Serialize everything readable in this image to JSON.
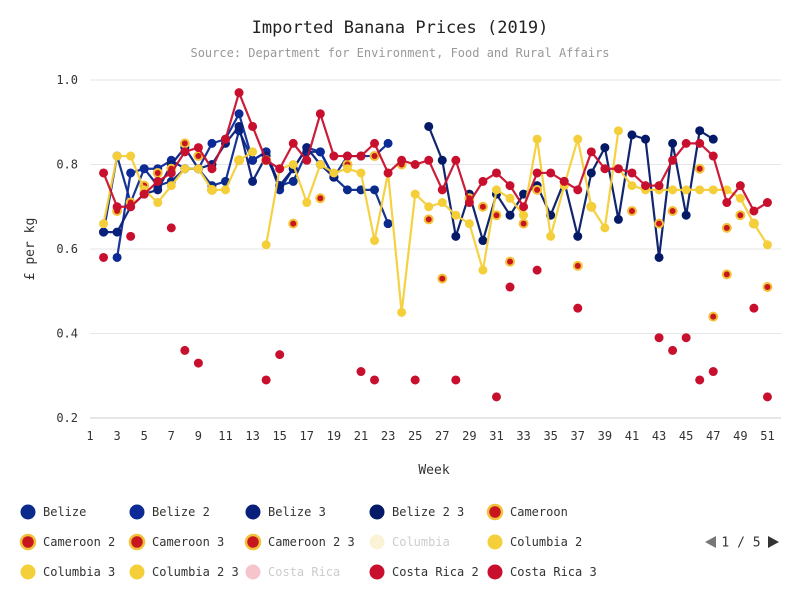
{
  "chart_data": {
    "type": "line",
    "title": "Imported Banana Prices (2019)",
    "subtitle": "Source: Department for Environment, Food and Rural Affairs",
    "xlabel": "Week",
    "ylabel": "£ per kg",
    "xlim": [
      1,
      52
    ],
    "ylim": [
      0.2,
      1.0
    ],
    "x_ticks": [
      1,
      3,
      5,
      7,
      9,
      11,
      13,
      15,
      17,
      19,
      21,
      23,
      25,
      27,
      29,
      31,
      33,
      35,
      37,
      39,
      41,
      43,
      45,
      47,
      49,
      51
    ],
    "y_ticks": [
      0.2,
      0.4,
      0.6,
      0.8,
      1.0
    ],
    "y_tick_labels": [
      "0.2",
      "0.4",
      "0.6",
      "0.8",
      "1.0"
    ],
    "grid": "horizontal",
    "legend_position": "bottom",
    "pager": "1 / 5",
    "series": [
      {
        "name": "Belize",
        "color": "#0a2a8c",
        "border": "#0a2a8c",
        "hidden": false,
        "style": "line",
        "x": [
          2,
          3,
          4,
          5,
          6,
          7,
          8,
          9,
          10,
          11,
          12,
          13,
          14,
          15,
          16,
          17,
          18,
          19,
          20,
          21,
          22,
          23
        ],
        "y": [
          0.64,
          0.82,
          0.71,
          0.79,
          0.75,
          0.76,
          0.79,
          0.79,
          0.75,
          0.76,
          0.88,
          0.81,
          0.83,
          0.75,
          0.76,
          0.83,
          0.83,
          0.77,
          0.74,
          0.74,
          0.74,
          0.66
        ]
      },
      {
        "name": "Belize 2",
        "color": "#0d2a96",
        "border": "#0d2a96",
        "hidden": false,
        "style": "line",
        "x": [
          3,
          4,
          5,
          6,
          7,
          8,
          9,
          10,
          11,
          12,
          13,
          14,
          15,
          16,
          17,
          18,
          19,
          20,
          21,
          22,
          23
        ],
        "y": [
          0.58,
          0.78,
          0.79,
          0.79,
          0.81,
          0.79,
          0.79,
          0.85,
          0.86,
          0.92,
          0.81,
          0.83,
          0.74,
          0.79,
          0.84,
          0.83,
          0.77,
          0.82,
          0.82,
          0.82,
          0.85
        ]
      },
      {
        "name": "Belize 3",
        "color": "#08207a",
        "border": "#08207a",
        "hidden": false,
        "style": "line",
        "x": [
          2,
          3,
          4,
          5,
          6,
          7,
          8,
          9,
          10,
          11,
          12,
          13,
          14,
          15,
          16,
          17,
          18,
          19
        ],
        "y": [
          0.64,
          0.64,
          0.7,
          0.73,
          0.74,
          0.8,
          0.84,
          0.79,
          0.8,
          0.85,
          0.89,
          0.76,
          0.82,
          0.75,
          0.79,
          0.84,
          0.8,
          0.77
        ]
      },
      {
        "name": "Belize 2 3",
        "color": "#041a66",
        "border": "#041a66",
        "hidden": false,
        "style": "line",
        "x": [
          26,
          27,
          28,
          29,
          30,
          31,
          32,
          33,
          34,
          35,
          36,
          37,
          38,
          39,
          40,
          41,
          42,
          43,
          44,
          45,
          46,
          47
        ],
        "y": [
          0.89,
          0.81,
          0.63,
          0.73,
          0.62,
          0.73,
          0.68,
          0.73,
          0.75,
          0.68,
          0.76,
          0.63,
          0.78,
          0.84,
          0.67,
          0.87,
          0.86,
          0.58,
          0.85,
          0.68,
          0.88,
          0.86
        ]
      },
      {
        "name": "Cameroon",
        "color": "#c8161e",
        "border": "#f2c23a",
        "hidden": false,
        "style": "markers",
        "x": [
          3,
          4,
          8,
          16,
          27,
          31,
          37,
          48
        ],
        "y": [
          0.69,
          0.71,
          0.85,
          0.66,
          0.53,
          0.68,
          0.56,
          0.54
        ]
      },
      {
        "name": "Cameroon 2",
        "color": "#c8161e",
        "border": "#f2c23a",
        "hidden": false,
        "style": "markers",
        "x": [
          7,
          12,
          20,
          24,
          29,
          32,
          33,
          44,
          48,
          51
        ],
        "y": [
          0.79,
          0.81,
          0.8,
          0.8,
          0.72,
          0.57,
          0.66,
          0.69,
          0.65,
          0.51
        ]
      },
      {
        "name": "Cameroon 3",
        "color": "#c8161e",
        "border": "#f2c23a",
        "hidden": false,
        "style": "markers",
        "x": [
          6,
          10,
          18,
          26,
          34,
          41,
          46,
          49
        ],
        "y": [
          0.78,
          0.74,
          0.72,
          0.67,
          0.74,
          0.69,
          0.79,
          0.68
        ]
      },
      {
        "name": "Cameroon 2 3",
        "color": "#c8161e",
        "border": "#f2c23a",
        "hidden": false,
        "style": "markers",
        "x": [
          5,
          9,
          14,
          22,
          30,
          38,
          43,
          47,
          50
        ],
        "y": [
          0.75,
          0.82,
          0.81,
          0.82,
          0.7,
          0.7,
          0.66,
          0.44,
          0.66
        ]
      },
      {
        "name": "Columbia",
        "color": "#fbf3d6",
        "border": "#fbf3d6",
        "hidden": true,
        "style": "markers",
        "x": [],
        "y": []
      },
      {
        "name": "Columbia 2",
        "color": "#f4cf3a",
        "border": "#f4cf3a",
        "hidden": false,
        "style": "line",
        "x": [
          14,
          15,
          16,
          17,
          18,
          19,
          20,
          21,
          22,
          23,
          24,
          25,
          26,
          27,
          28,
          29,
          30,
          31,
          32,
          33,
          34,
          35,
          36,
          37,
          38,
          39,
          40
        ],
        "y": [
          0.61,
          0.79,
          0.8,
          0.71,
          0.8,
          0.78,
          0.79,
          0.78,
          0.62,
          0.78,
          0.45,
          0.73,
          0.7,
          0.71,
          0.68,
          0.66,
          0.55,
          0.74,
          0.72,
          0.68,
          0.86,
          0.63,
          0.75,
          0.86,
          0.7,
          0.65,
          0.88
        ]
      },
      {
        "name": "Columbia 3",
        "color": "#f4cf3a",
        "border": "#f4cf3a",
        "hidden": false,
        "style": "line",
        "x": [
          40,
          41,
          42,
          43,
          44,
          45,
          46,
          47,
          48,
          49,
          50,
          51
        ],
        "y": [
          0.79,
          0.75,
          0.74,
          0.74,
          0.74,
          0.74,
          0.74,
          0.74,
          0.74,
          0.72,
          0.66,
          0.61
        ]
      },
      {
        "name": "Columbia 2 3",
        "color": "#f4cf3a",
        "border": "#f4cf3a",
        "hidden": false,
        "style": "line",
        "x": [
          2,
          3,
          4,
          5,
          6,
          7,
          8,
          9,
          10,
          11,
          12,
          13
        ],
        "y": [
          0.66,
          0.82,
          0.82,
          0.74,
          0.71,
          0.75,
          0.79,
          0.79,
          0.74,
          0.74,
          0.81,
          0.83
        ]
      },
      {
        "name": "Costa Rica",
        "color": "#f5c4cc",
        "border": "#f5c4cc",
        "hidden": true,
        "style": "markers",
        "x": [],
        "y": []
      },
      {
        "name": "Costa Rica 2",
        "color": "#c8102e",
        "border": "#c8102e",
        "hidden": false,
        "style": "line",
        "x": [
          2,
          3,
          4,
          5,
          6,
          7,
          8,
          9,
          10,
          11,
          12,
          13,
          14,
          15,
          16,
          17,
          18,
          19,
          20,
          21,
          22,
          23,
          24,
          25,
          26,
          27,
          28,
          29,
          30,
          31,
          32,
          33,
          34,
          35,
          36,
          37,
          38,
          39,
          40,
          41,
          42,
          43,
          44,
          45,
          46,
          47,
          48,
          49,
          50,
          51
        ],
        "y": [
          0.78,
          0.7,
          0.7,
          0.73,
          0.76,
          0.78,
          0.83,
          0.84,
          0.79,
          0.86,
          0.97,
          0.89,
          0.81,
          0.79,
          0.85,
          0.81,
          0.92,
          0.82,
          0.82,
          0.82,
          0.85,
          0.78,
          0.81,
          0.8,
          0.81,
          0.74,
          0.81,
          0.71,
          0.76,
          0.78,
          0.75,
          0.7,
          0.78,
          0.78,
          0.76,
          0.74,
          0.83,
          0.79,
          0.79,
          0.78,
          0.75,
          0.75,
          0.81,
          0.85,
          0.85,
          0.82,
          0.71,
          0.75,
          0.69,
          0.71
        ]
      },
      {
        "name": "Costa Rica 3",
        "color": "#c8102e",
        "border": "#c8102e",
        "hidden": false,
        "style": "markers",
        "x": [
          2,
          4,
          7,
          8,
          9,
          14,
          15,
          21,
          22,
          25,
          28,
          31,
          32,
          34,
          37,
          43,
          44,
          45,
          46,
          47,
          50,
          51
        ],
        "y": [
          0.58,
          0.63,
          0.65,
          0.36,
          0.33,
          0.29,
          0.35,
          0.31,
          0.29,
          0.29,
          0.29,
          0.25,
          0.51,
          0.55,
          0.46,
          0.39,
          0.36,
          0.39,
          0.29,
          0.31,
          0.46,
          0.25
        ]
      }
    ]
  }
}
